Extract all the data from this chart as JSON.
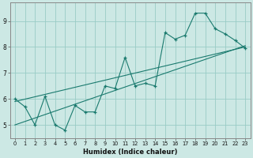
{
  "xlabel": "Humidex (Indice chaleur)",
  "x": [
    0,
    1,
    2,
    3,
    4,
    5,
    6,
    7,
    8,
    9,
    10,
    11,
    12,
    13,
    14,
    15,
    16,
    17,
    18,
    19,
    20,
    21,
    22,
    23
  ],
  "series_data": [
    6.0,
    5.7,
    5.0,
    6.1,
    5.0,
    4.8,
    5.75,
    5.5,
    5.5,
    6.5,
    6.4,
    7.6,
    6.5,
    6.6,
    6.5,
    8.55,
    8.3,
    8.45,
    9.3,
    9.3,
    8.7,
    8.5,
    8.25,
    7.95
  ],
  "trend1_x": [
    0,
    23
  ],
  "trend1_y": [
    5.9,
    8.0
  ],
  "trend2_x": [
    0,
    23
  ],
  "trend2_y": [
    5.0,
    8.05
  ],
  "color": "#1a7a6e",
  "bg_color": "#cce8e4",
  "grid_color": "#99ccc6",
  "ylim": [
    4.5,
    9.7
  ],
  "xlim": [
    -0.5,
    23.5
  ],
  "yticks": [
    5,
    6,
    7,
    8,
    9
  ],
  "xticks": [
    0,
    1,
    2,
    3,
    4,
    5,
    6,
    7,
    8,
    9,
    10,
    11,
    12,
    13,
    14,
    15,
    16,
    17,
    18,
    19,
    20,
    21,
    22,
    23
  ]
}
